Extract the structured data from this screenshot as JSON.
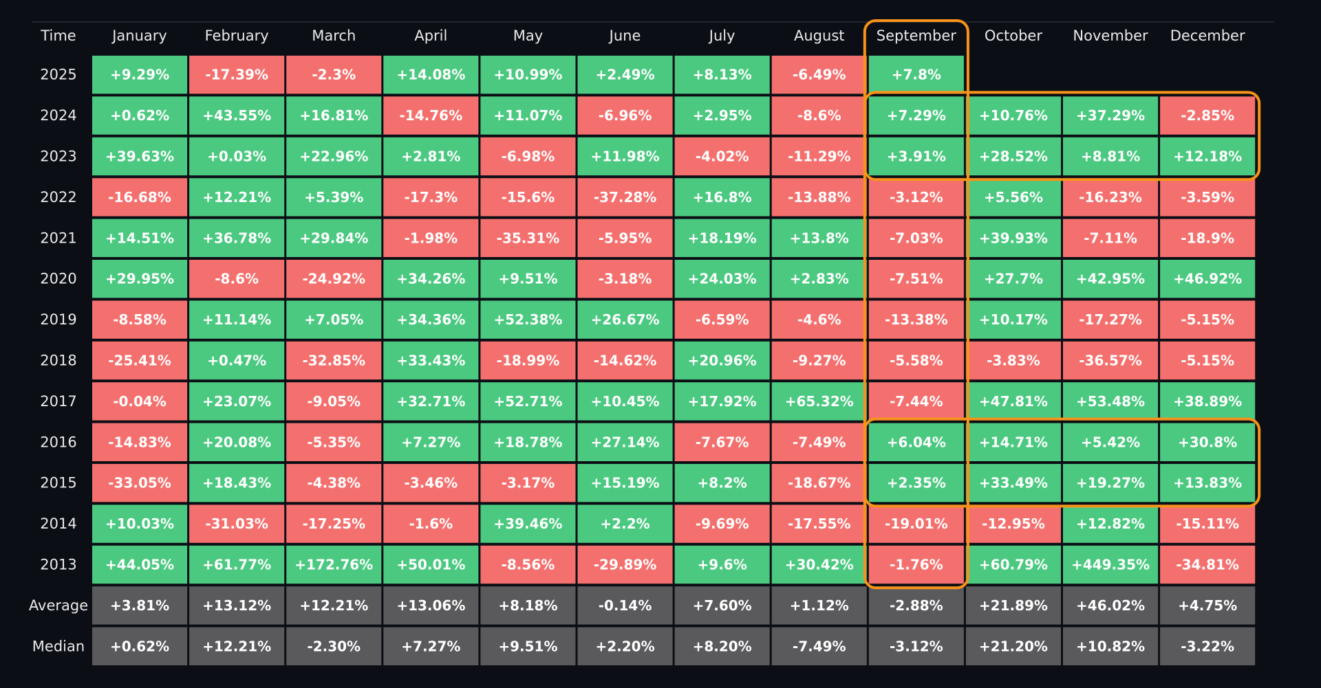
{
  "chart_data": {
    "type": "heatmap",
    "corner_label": "Time",
    "columns": [
      "January",
      "February",
      "March",
      "April",
      "May",
      "June",
      "July",
      "August",
      "September",
      "October",
      "November",
      "December"
    ],
    "rows": [
      {
        "label": "2025",
        "kind": "year",
        "values": [
          "+9.29%",
          "-17.39%",
          "-2.3%",
          "+14.08%",
          "+10.99%",
          "+2.49%",
          "+8.13%",
          "-6.49%",
          "+7.8%",
          null,
          null,
          null
        ]
      },
      {
        "label": "2024",
        "kind": "year",
        "values": [
          "+0.62%",
          "+43.55%",
          "+16.81%",
          "-14.76%",
          "+11.07%",
          "-6.96%",
          "+2.95%",
          "-8.6%",
          "+7.29%",
          "+10.76%",
          "+37.29%",
          "-2.85%"
        ]
      },
      {
        "label": "2023",
        "kind": "year",
        "values": [
          "+39.63%",
          "+0.03%",
          "+22.96%",
          "+2.81%",
          "-6.98%",
          "+11.98%",
          "-4.02%",
          "-11.29%",
          "+3.91%",
          "+28.52%",
          "+8.81%",
          "+12.18%"
        ]
      },
      {
        "label": "2022",
        "kind": "year",
        "values": [
          "-16.68%",
          "+12.21%",
          "+5.39%",
          "-17.3%",
          "-15.6%",
          "-37.28%",
          "+16.8%",
          "-13.88%",
          "-3.12%",
          "+5.56%",
          "-16.23%",
          "-3.59%"
        ]
      },
      {
        "label": "2021",
        "kind": "year",
        "values": [
          "+14.51%",
          "+36.78%",
          "+29.84%",
          "-1.98%",
          "-35.31%",
          "-5.95%",
          "+18.19%",
          "+13.8%",
          "-7.03%",
          "+39.93%",
          "-7.11%",
          "-18.9%"
        ]
      },
      {
        "label": "2020",
        "kind": "year",
        "values": [
          "+29.95%",
          "-8.6%",
          "-24.92%",
          "+34.26%",
          "+9.51%",
          "-3.18%",
          "+24.03%",
          "+2.83%",
          "-7.51%",
          "+27.7%",
          "+42.95%",
          "+46.92%"
        ]
      },
      {
        "label": "2019",
        "kind": "year",
        "values": [
          "-8.58%",
          "+11.14%",
          "+7.05%",
          "+34.36%",
          "+52.38%",
          "+26.67%",
          "-6.59%",
          "-4.6%",
          "-13.38%",
          "+10.17%",
          "-17.27%",
          "-5.15%"
        ]
      },
      {
        "label": "2018",
        "kind": "year",
        "values": [
          "-25.41%",
          "+0.47%",
          "-32.85%",
          "+33.43%",
          "-18.99%",
          "-14.62%",
          "+20.96%",
          "-9.27%",
          "-5.58%",
          "-3.83%",
          "-36.57%",
          "-5.15%"
        ]
      },
      {
        "label": "2017",
        "kind": "year",
        "values": [
          "-0.04%",
          "+23.07%",
          "-9.05%",
          "+32.71%",
          "+52.71%",
          "+10.45%",
          "+17.92%",
          "+65.32%",
          "-7.44%",
          "+47.81%",
          "+53.48%",
          "+38.89%"
        ]
      },
      {
        "label": "2016",
        "kind": "year",
        "values": [
          "-14.83%",
          "+20.08%",
          "-5.35%",
          "+7.27%",
          "+18.78%",
          "+27.14%",
          "-7.67%",
          "-7.49%",
          "+6.04%",
          "+14.71%",
          "+5.42%",
          "+30.8%"
        ]
      },
      {
        "label": "2015",
        "kind": "year",
        "values": [
          "-33.05%",
          "+18.43%",
          "-4.38%",
          "-3.46%",
          "-3.17%",
          "+15.19%",
          "+8.2%",
          "-18.67%",
          "+2.35%",
          "+33.49%",
          "+19.27%",
          "+13.83%"
        ]
      },
      {
        "label": "2014",
        "kind": "year",
        "values": [
          "+10.03%",
          "-31.03%",
          "-17.25%",
          "-1.6%",
          "+39.46%",
          "+2.2%",
          "-9.69%",
          "-17.55%",
          "-19.01%",
          "-12.95%",
          "+12.82%",
          "-15.11%"
        ]
      },
      {
        "label": "2013",
        "kind": "year",
        "values": [
          "+44.05%",
          "+61.77%",
          "+172.76%",
          "+50.01%",
          "-8.56%",
          "-29.89%",
          "+9.6%",
          "+30.42%",
          "-1.76%",
          "+60.79%",
          "+449.35%",
          "-34.81%"
        ]
      },
      {
        "label": "Average",
        "kind": "summary",
        "values": [
          "+3.81%",
          "+13.12%",
          "+12.21%",
          "+13.06%",
          "+8.18%",
          "-0.14%",
          "+7.60%",
          "+1.12%",
          "-2.88%",
          "+21.89%",
          "+46.02%",
          "+4.75%"
        ]
      },
      {
        "label": "Median",
        "kind": "summary",
        "values": [
          "+0.62%",
          "+12.21%",
          "-2.30%",
          "+7.27%",
          "+9.51%",
          "+2.20%",
          "+8.20%",
          "-7.49%",
          "-3.12%",
          "+21.20%",
          "+10.82%",
          "-3.22%"
        ]
      }
    ],
    "highlights": [
      {
        "row_start": 0,
        "row_end": 12,
        "col_start": 8,
        "col_end": 8
      },
      {
        "row_start": 1,
        "row_end": 2,
        "col_start": 8,
        "col_end": 11
      },
      {
        "row_start": 9,
        "row_end": 10,
        "col_start": 8,
        "col_end": 11
      }
    ],
    "colors": {
      "positive": "#4bc980",
      "negative": "#f4706e",
      "summary": "#5a5a5d",
      "highlight": "#f7931a",
      "background": "#0c0e15"
    }
  }
}
